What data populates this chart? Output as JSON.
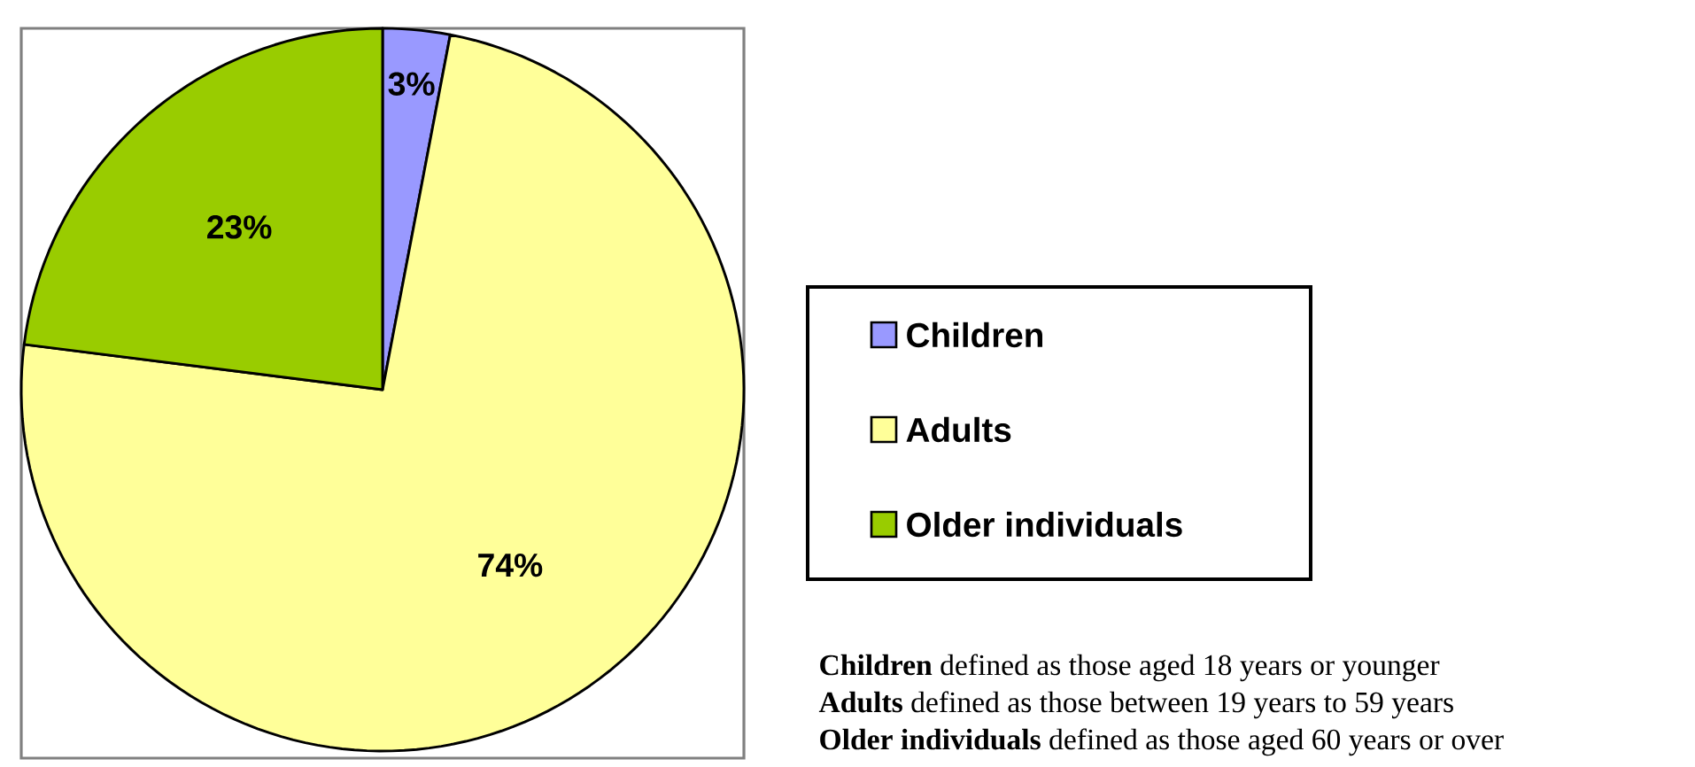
{
  "chart_data": {
    "type": "pie",
    "categories": [
      "Children",
      "Adults",
      "Older individuals"
    ],
    "values": [
      3,
      74,
      23
    ],
    "colors": [
      "#9999ff",
      "#ffff99",
      "#99cc00"
    ],
    "value_labels": [
      "3%",
      "74%",
      "23%"
    ],
    "legend": "right",
    "annotations": [
      "**Children** defined as those aged 18 years or younger",
      "**Adults** defined as those between 19 years to 59 years",
      "**Older individuals** defined as those aged 60 years or over"
    ]
  }
}
